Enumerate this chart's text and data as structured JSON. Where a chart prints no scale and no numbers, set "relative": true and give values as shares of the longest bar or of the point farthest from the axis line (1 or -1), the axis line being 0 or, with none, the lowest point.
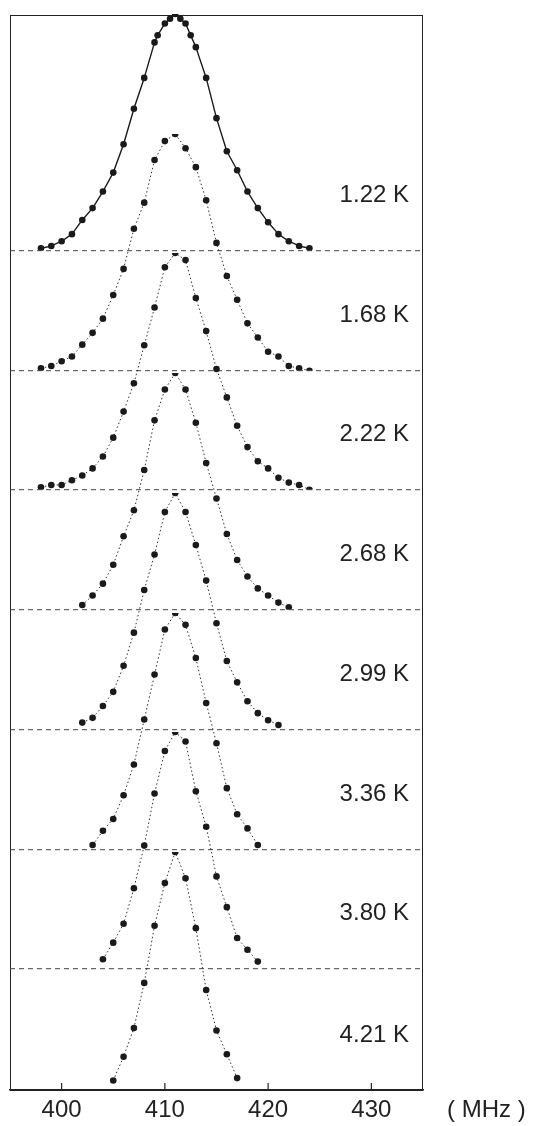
{
  "chart_data": [
    {
      "type": "line",
      "relative": true,
      "xlim": [
        395,
        435
      ],
      "marker": "circle",
      "line_style": "solid",
      "tick_labels": false,
      "series": [
        {
          "name": "1.22 K",
          "color": "#1a1a1a",
          "x": [
            398,
            399,
            400,
            401,
            402,
            403,
            404,
            405,
            406,
            407,
            408,
            409,
            409.3,
            410,
            410.5,
            411,
            411.5,
            412,
            412.5,
            413,
            414,
            415,
            416,
            417,
            418,
            419,
            420,
            421,
            422,
            423,
            424
          ],
          "values": [
            0.01,
            0.02,
            0.04,
            0.07,
            0.13,
            0.18,
            0.25,
            0.33,
            0.45,
            0.6,
            0.73,
            0.88,
            0.91,
            0.96,
            0.98,
            1,
            0.98,
            0.96,
            0.91,
            0.86,
            0.73,
            0.56,
            0.42,
            0.34,
            0.25,
            0.18,
            0.12,
            0.07,
            0.04,
            0.02,
            0.01
          ]
        }
      ]
    },
    {
      "type": "line",
      "relative": true,
      "xlim": [
        395,
        435
      ],
      "marker": "circle",
      "line_style": "dotted",
      "tick_labels": false,
      "series": [
        {
          "name": "1.68 K",
          "color": "#1a1a1a",
          "x": [
            398,
            399,
            400,
            401,
            402,
            403,
            404,
            405,
            406,
            407,
            408,
            409,
            410,
            411,
            412,
            413,
            414,
            415,
            416,
            417,
            418,
            419,
            420,
            421,
            422,
            423,
            424
          ],
          "values": [
            0.01,
            0.02,
            0.04,
            0.06,
            0.11,
            0.16,
            0.22,
            0.32,
            0.43,
            0.6,
            0.71,
            0.89,
            0.97,
            1,
            0.94,
            0.86,
            0.72,
            0.54,
            0.4,
            0.3,
            0.2,
            0.14,
            0.08,
            0.06,
            0.02,
            0.01,
            0
          ]
        }
      ]
    },
    {
      "type": "line",
      "relative": true,
      "xlim": [
        395,
        435
      ],
      "marker": "circle",
      "line_style": "dotted",
      "tick_labels": false,
      "series": [
        {
          "name": "2.22 K",
          "color": "#1a1a1a",
          "x": [
            398,
            399,
            400,
            401,
            402,
            403,
            404,
            405,
            406,
            407,
            408,
            409,
            410,
            411,
            412,
            413,
            414,
            415,
            416,
            417,
            418,
            419,
            420,
            421,
            422,
            423,
            424
          ],
          "values": [
            0.01,
            0.02,
            0.02,
            0.04,
            0.06,
            0.09,
            0.14,
            0.22,
            0.33,
            0.45,
            0.61,
            0.77,
            0.94,
            1,
            0.97,
            0.81,
            0.67,
            0.51,
            0.39,
            0.27,
            0.18,
            0.12,
            0.09,
            0.05,
            0.03,
            0.02,
            0
          ]
        }
      ]
    },
    {
      "type": "line",
      "relative": true,
      "xlim": [
        395,
        435
      ],
      "marker": "circle",
      "line_style": "dotted",
      "tick_labels": false,
      "series": [
        {
          "name": "2.68 K",
          "color": "#1a1a1a",
          "x": [
            402,
            403,
            404,
            405,
            406,
            407,
            408,
            409,
            410,
            411,
            412,
            413,
            414,
            415,
            416,
            417,
            418,
            419,
            420,
            421,
            422
          ],
          "values": [
            0.02,
            0.06,
            0.11,
            0.19,
            0.31,
            0.42,
            0.59,
            0.8,
            0.93,
            1,
            0.93,
            0.79,
            0.62,
            0.47,
            0.32,
            0.21,
            0.14,
            0.09,
            0.06,
            0.03,
            0.01
          ]
        }
      ]
    },
    {
      "type": "line",
      "relative": true,
      "xlim": [
        395,
        435
      ],
      "marker": "circle",
      "line_style": "dotted",
      "tick_labels": false,
      "series": [
        {
          "name": "2.99 K",
          "color": "#1a1a1a",
          "x": [
            402,
            403,
            404,
            405,
            406,
            407,
            408,
            409,
            410,
            411,
            412,
            413,
            414,
            415,
            416,
            417,
            418,
            419,
            420,
            421
          ],
          "values": [
            0.03,
            0.05,
            0.1,
            0.16,
            0.27,
            0.41,
            0.59,
            0.74,
            0.92,
            1,
            0.92,
            0.78,
            0.63,
            0.45,
            0.29,
            0.2,
            0.12,
            0.07,
            0.04,
            0.02
          ]
        }
      ]
    },
    {
      "type": "line",
      "relative": true,
      "xlim": [
        395,
        435
      ],
      "marker": "circle",
      "line_style": "dotted",
      "tick_labels": false,
      "series": [
        {
          "name": "3.36 K",
          "color": "#1a1a1a",
          "x": [
            403,
            404,
            405,
            406,
            407,
            408,
            409,
            410,
            411,
            412,
            413,
            414,
            415,
            416,
            417,
            418,
            419
          ],
          "values": [
            0.02,
            0.08,
            0.13,
            0.23,
            0.36,
            0.55,
            0.74,
            0.93,
            1,
            0.95,
            0.81,
            0.62,
            0.45,
            0.26,
            0.15,
            0.09,
            0.02
          ]
        }
      ]
    },
    {
      "type": "line",
      "relative": true,
      "xlim": [
        395,
        435
      ],
      "marker": "circle",
      "line_style": "dotted",
      "tick_labels": false,
      "series": [
        {
          "name": "3.80 K",
          "color": "#1a1a1a",
          "x": [
            404,
            405,
            406,
            407,
            408,
            409,
            410,
            411,
            412,
            413,
            414,
            415,
            416,
            417,
            418,
            419
          ],
          "values": [
            0.04,
            0.11,
            0.19,
            0.34,
            0.52,
            0.74,
            0.92,
            1,
            0.96,
            0.75,
            0.6,
            0.39,
            0.26,
            0.13,
            0.08,
            0.03
          ]
        }
      ]
    },
    {
      "type": "line",
      "relative": true,
      "xlim": [
        395,
        435
      ],
      "xticks": [
        400,
        410,
        420,
        430
      ],
      "xlabel": "( MHz )",
      "marker": "circle",
      "line_style": "dotted",
      "tick_labels": "x",
      "series": [
        {
          "name": "4.21 K",
          "color": "#1a1a1a",
          "x": [
            405,
            406,
            407,
            408,
            409,
            410,
            411,
            412,
            413,
            414,
            415,
            416,
            417
          ],
          "values": [
            0.04,
            0.14,
            0.26,
            0.45,
            0.69,
            0.87,
            1,
            0.89,
            0.68,
            0.42,
            0.25,
            0.15,
            0.05
          ]
        }
      ]
    }
  ]
}
